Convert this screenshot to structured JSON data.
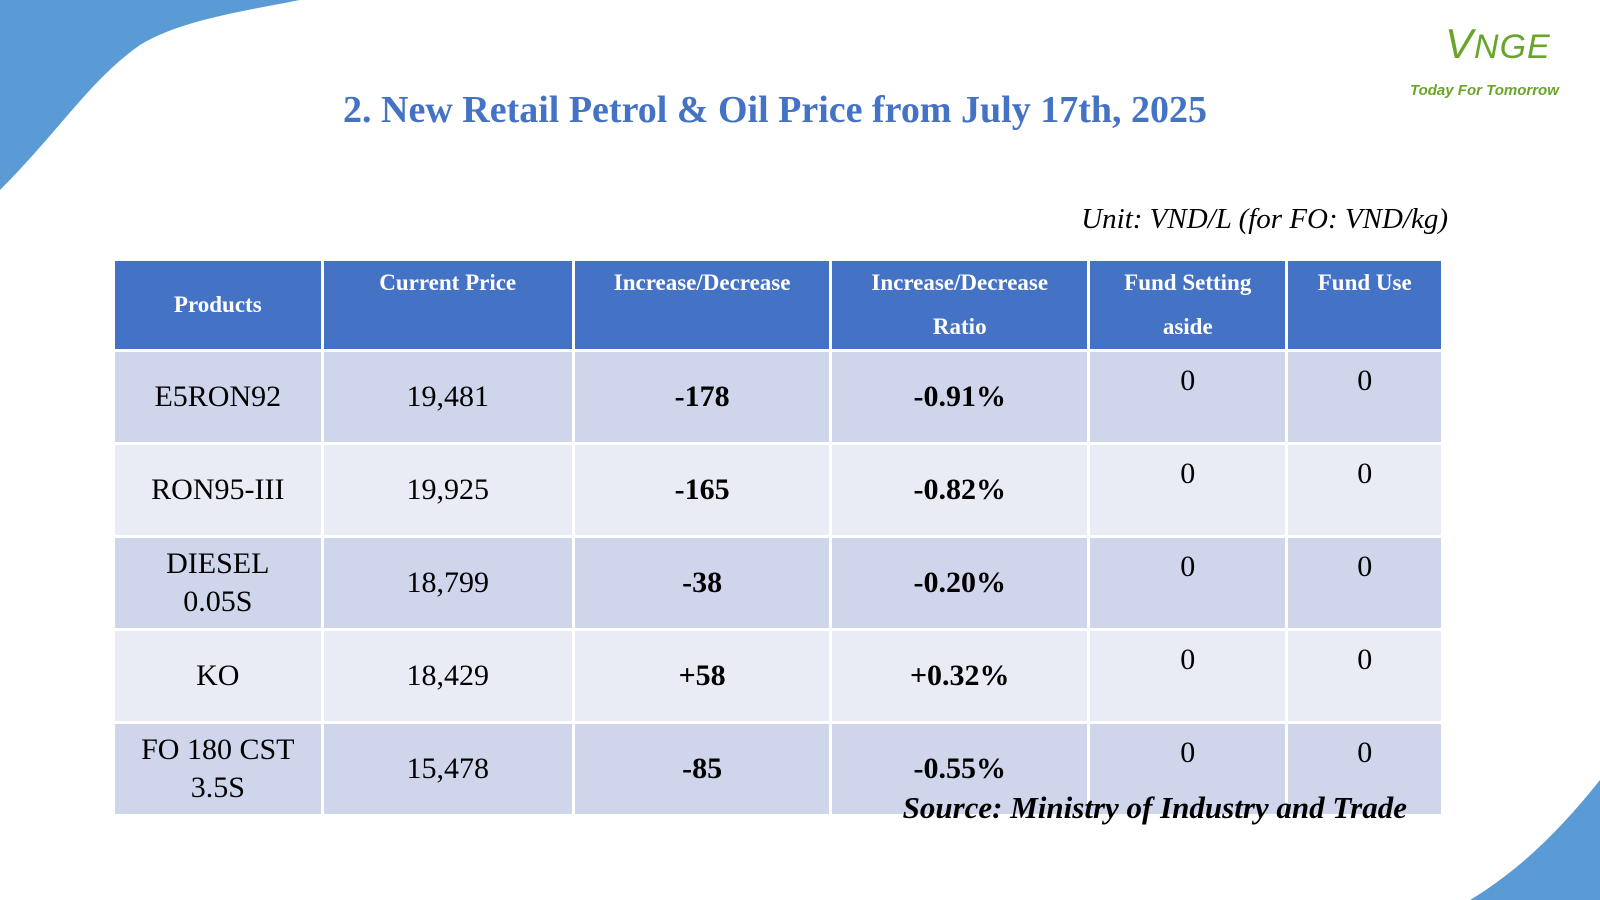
{
  "brand": {
    "logo_initial": "V",
    "logo_rest": "NGE",
    "tagline": "Today For Tomorrow",
    "color": "#6aa52b"
  },
  "title": "2. New Retail Petrol & Oil Price from July 17th, 2025",
  "unit": "Unit: VND/L (for FO: VND/kg)",
  "table": {
    "headers": {
      "products": "Products",
      "current_price": "Current Price",
      "increase_decrease": "Increase/Decrease",
      "ratio_line1": "Increase/Decrease",
      "ratio_line2": "Ratio",
      "fund_setting_line1": "Fund Setting",
      "fund_setting_line2": "aside",
      "fund_use": "Fund Use"
    },
    "rows": [
      {
        "product_line1": "E5RON92",
        "product_line2": "",
        "price": "19,481",
        "change": "-178",
        "ratio": "-0.91%",
        "fund_setting": "0",
        "fund_use": "0"
      },
      {
        "product_line1": "RON95-III",
        "product_line2": "",
        "price": "19,925",
        "change": "-165",
        "ratio": "-0.82%",
        "fund_setting": "0",
        "fund_use": "0"
      },
      {
        "product_line1": "DIESEL",
        "product_line2": "0.05S",
        "price": "18,799",
        "change": "-38",
        "ratio": "-0.20%",
        "fund_setting": "0",
        "fund_use": "0"
      },
      {
        "product_line1": "KO",
        "product_line2": "",
        "price": "18,429",
        "change": "+58",
        "ratio": "+0.32%",
        "fund_setting": "0",
        "fund_use": "0"
      },
      {
        "product_line1": "FO 180 CST",
        "product_line2": "3.5S",
        "price": "15,478",
        "change": "-85",
        "ratio": "-0.55%",
        "fund_setting": "0",
        "fund_use": "0"
      }
    ],
    "colors": {
      "header": "#4472c4",
      "decrease": "#ff0000",
      "increase": "#00b050"
    }
  },
  "source": "Source: Ministry of Industry and Trade"
}
